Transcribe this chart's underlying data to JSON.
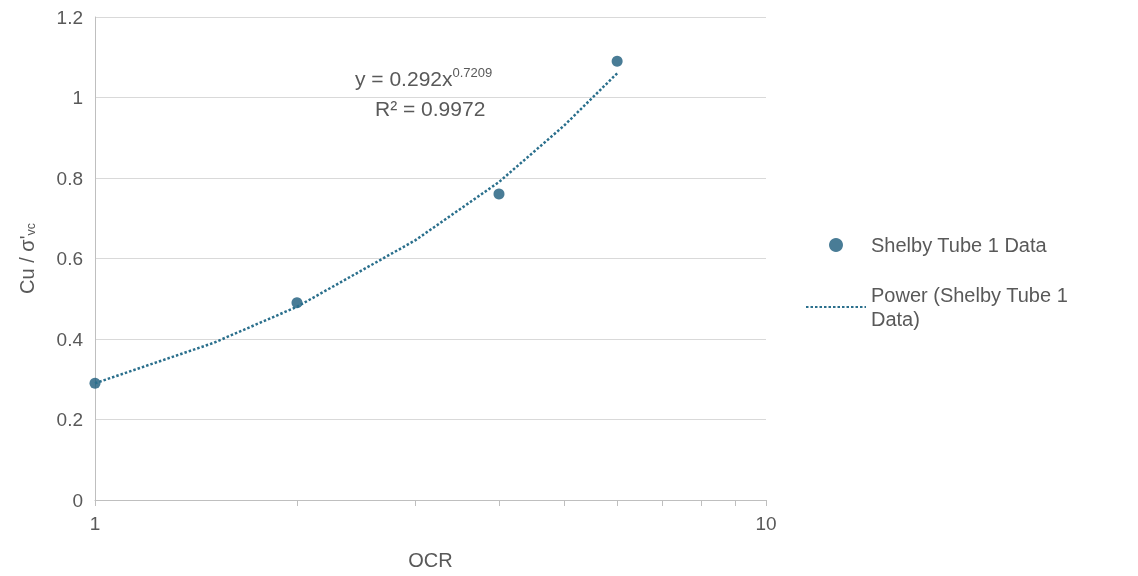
{
  "chart_data": {
    "type": "scatter",
    "xlabel": "OCR",
    "ylabel": "Cu / σ'$_{vc}$",
    "x": [
      1,
      2,
      4,
      6
    ],
    "series": [
      {
        "name": "Shelby Tube 1 Data",
        "color": "#1b5b7c",
        "marker": "circle",
        "values": [
          0.29,
          0.49,
          0.76,
          1.09
        ]
      },
      {
        "name": "Power (Shelby Tube 1 Data)",
        "type": "line",
        "color": "#2a6f8c",
        "line_style": "dotted",
        "marker": "none",
        "x": [
          1,
          1.5,
          2,
          3,
          4,
          5,
          6
        ],
        "values": [
          0.29,
          0.39,
          0.48,
          0.645,
          0.79,
          0.93,
          1.06
        ]
      }
    ],
    "log": "x",
    "xlim": [
      1,
      10
    ],
    "xticks": [
      1,
      {
        "value": 2,
        "label": null
      },
      {
        "value": 3,
        "label": null
      },
      {
        "value": 4,
        "label": null
      },
      {
        "value": 5,
        "label": null
      },
      {
        "value": 6,
        "label": null
      },
      {
        "value": 7,
        "label": null
      },
      {
        "value": 8,
        "label": null
      },
      {
        "value": 9,
        "label": null
      },
      10
    ],
    "ylim": [
      0,
      1.2
    ],
    "yticks": [
      0,
      0.2,
      0.4,
      0.6,
      0.8,
      1,
      1.2
    ],
    "grid": "y",
    "legend": "right",
    "annotations": [
      "y = 0.292x$^{0.7209}$",
      "R² = 0.9972"
    ]
  }
}
